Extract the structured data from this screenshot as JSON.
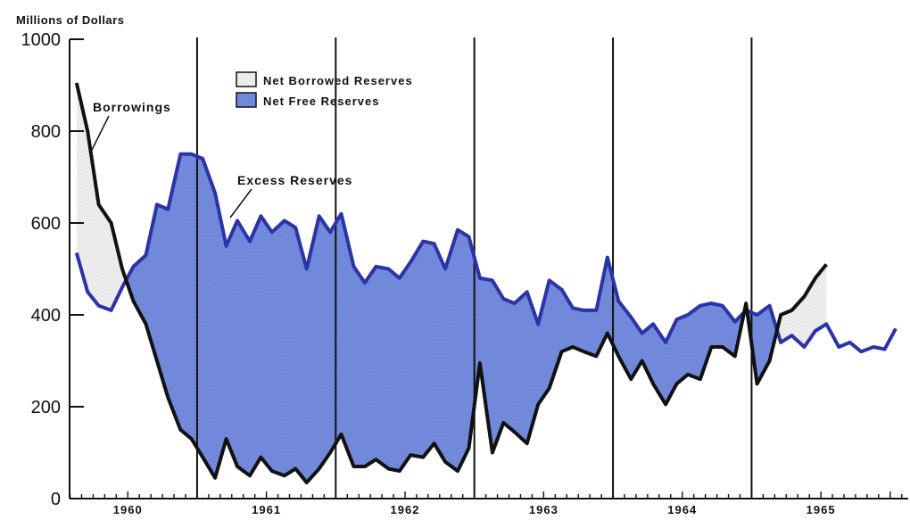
{
  "chart_data": {
    "type": "area",
    "title": "",
    "ylabel": "Millions of Dollars",
    "xlabel": "",
    "ylim": [
      0,
      1000
    ],
    "xlim": [
      1959.58,
      1965.63
    ],
    "y_ticks": [
      0,
      200,
      400,
      600,
      800,
      1000
    ],
    "y_tick_labels": [
      "0",
      "200",
      "400",
      "600",
      "800",
      "1000"
    ],
    "x_ticks": [
      1960,
      1961,
      1962,
      1963,
      1964,
      1965
    ],
    "x_tick_labels": [
      "1960",
      "1961",
      "1962",
      "1963",
      "1964",
      "1965"
    ],
    "year_dividers": [
      1960.5,
      1961.5,
      1962.5,
      1963.5,
      1964.5
    ],
    "grid": false,
    "legend_position": "top-center",
    "legend": [
      {
        "label": "Net Borrowed Reserves",
        "color": "#ececec"
      },
      {
        "label": "Net Free Reserves",
        "color": "#6e86d6"
      }
    ],
    "colors": {
      "excess_line": "#2a33a8",
      "borrowings_line": "#111111",
      "net_free_fill": "#6e86d6",
      "net_borrowed_fill": "#ececec"
    },
    "annotations": [
      {
        "text": "Borrowings",
        "series": "Borrowings"
      },
      {
        "text": "Excess Reserves",
        "series": "Excess Reserves"
      }
    ],
    "series": [
      {
        "name": "Excess Reserves",
        "x": [
          1959.63,
          1959.71,
          1959.79,
          1959.88,
          1959.96,
          1960.04,
          1960.13,
          1960.21,
          1960.29,
          1960.38,
          1960.46,
          1960.54,
          1960.63,
          1960.71,
          1960.79,
          1960.88,
          1960.96,
          1961.04,
          1961.13,
          1961.21,
          1961.29,
          1961.38,
          1961.46,
          1961.54,
          1961.63,
          1961.71,
          1961.79,
          1961.88,
          1961.96,
          1962.04,
          1962.13,
          1962.21,
          1962.29,
          1962.38,
          1962.46,
          1962.54,
          1962.63,
          1962.71,
          1962.79,
          1962.88,
          1962.96,
          1963.04,
          1963.13,
          1963.21,
          1963.29,
          1963.38,
          1963.46,
          1963.54,
          1963.63,
          1963.71,
          1963.79,
          1963.88,
          1963.96,
          1964.04,
          1964.13,
          1964.21,
          1964.29,
          1964.38,
          1964.46,
          1964.54,
          1964.63,
          1964.71,
          1964.79,
          1964.88,
          1964.96,
          1965.04,
          1965.13,
          1965.21,
          1965.29,
          1965.38,
          1965.46,
          1965.54
        ],
        "values": [
          535,
          450,
          420,
          410,
          460,
          505,
          530,
          640,
          630,
          750,
          750,
          740,
          665,
          550,
          605,
          560,
          615,
          580,
          605,
          590,
          500,
          615,
          580,
          620,
          505,
          470,
          505,
          500,
          480,
          515,
          560,
          555,
          500,
          585,
          570,
          480,
          475,
          435,
          425,
          450,
          380,
          475,
          455,
          415,
          410,
          410,
          525,
          430,
          395,
          360,
          380,
          340,
          390,
          400,
          420,
          425,
          420,
          385,
          410,
          400,
          420,
          340,
          355,
          330,
          365,
          380,
          330,
          340,
          320,
          330,
          325,
          370
        ]
      },
      {
        "name": "Borrowings",
        "x": [
          1959.63,
          1959.71,
          1959.79,
          1959.88,
          1959.96,
          1960.04,
          1960.13,
          1960.21,
          1960.29,
          1960.38,
          1960.46,
          1960.54,
          1960.63,
          1960.71,
          1960.79,
          1960.88,
          1960.96,
          1961.04,
          1961.13,
          1961.21,
          1961.29,
          1961.38,
          1961.46,
          1961.54,
          1961.63,
          1961.71,
          1961.79,
          1961.88,
          1961.96,
          1962.04,
          1962.13,
          1962.21,
          1962.29,
          1962.38,
          1962.46,
          1962.54,
          1962.63,
          1962.71,
          1962.79,
          1962.88,
          1962.96,
          1963.04,
          1963.13,
          1963.21,
          1963.29,
          1963.38,
          1963.46,
          1963.54,
          1963.63,
          1963.71,
          1963.79,
          1963.88,
          1963.96,
          1964.04,
          1964.13,
          1964.21,
          1964.29,
          1964.38,
          1964.46,
          1964.54,
          1964.63,
          1964.71,
          1964.79,
          1964.88,
          1964.96,
          1965.04,
          1965.13,
          1965.21,
          1965.29,
          1965.38,
          1965.46,
          1965.54
        ],
        "values": [
          905,
          800,
          640,
          600,
          500,
          430,
          380,
          300,
          220,
          150,
          130,
          90,
          45,
          130,
          70,
          50,
          90,
          60,
          50,
          65,
          35,
          65,
          100,
          140,
          70,
          70,
          85,
          65,
          60,
          95,
          90,
          120,
          80,
          60,
          110,
          295,
          100,
          165,
          145,
          120,
          205,
          240,
          320,
          330,
          320,
          310,
          360,
          310,
          260,
          300,
          250,
          205,
          250,
          270,
          260,
          330,
          330,
          310,
          425,
          250,
          300,
          400,
          410,
          440,
          480,
          510,
          0,
          0,
          0,
          0,
          0,
          0
        ]
      }
    ]
  }
}
